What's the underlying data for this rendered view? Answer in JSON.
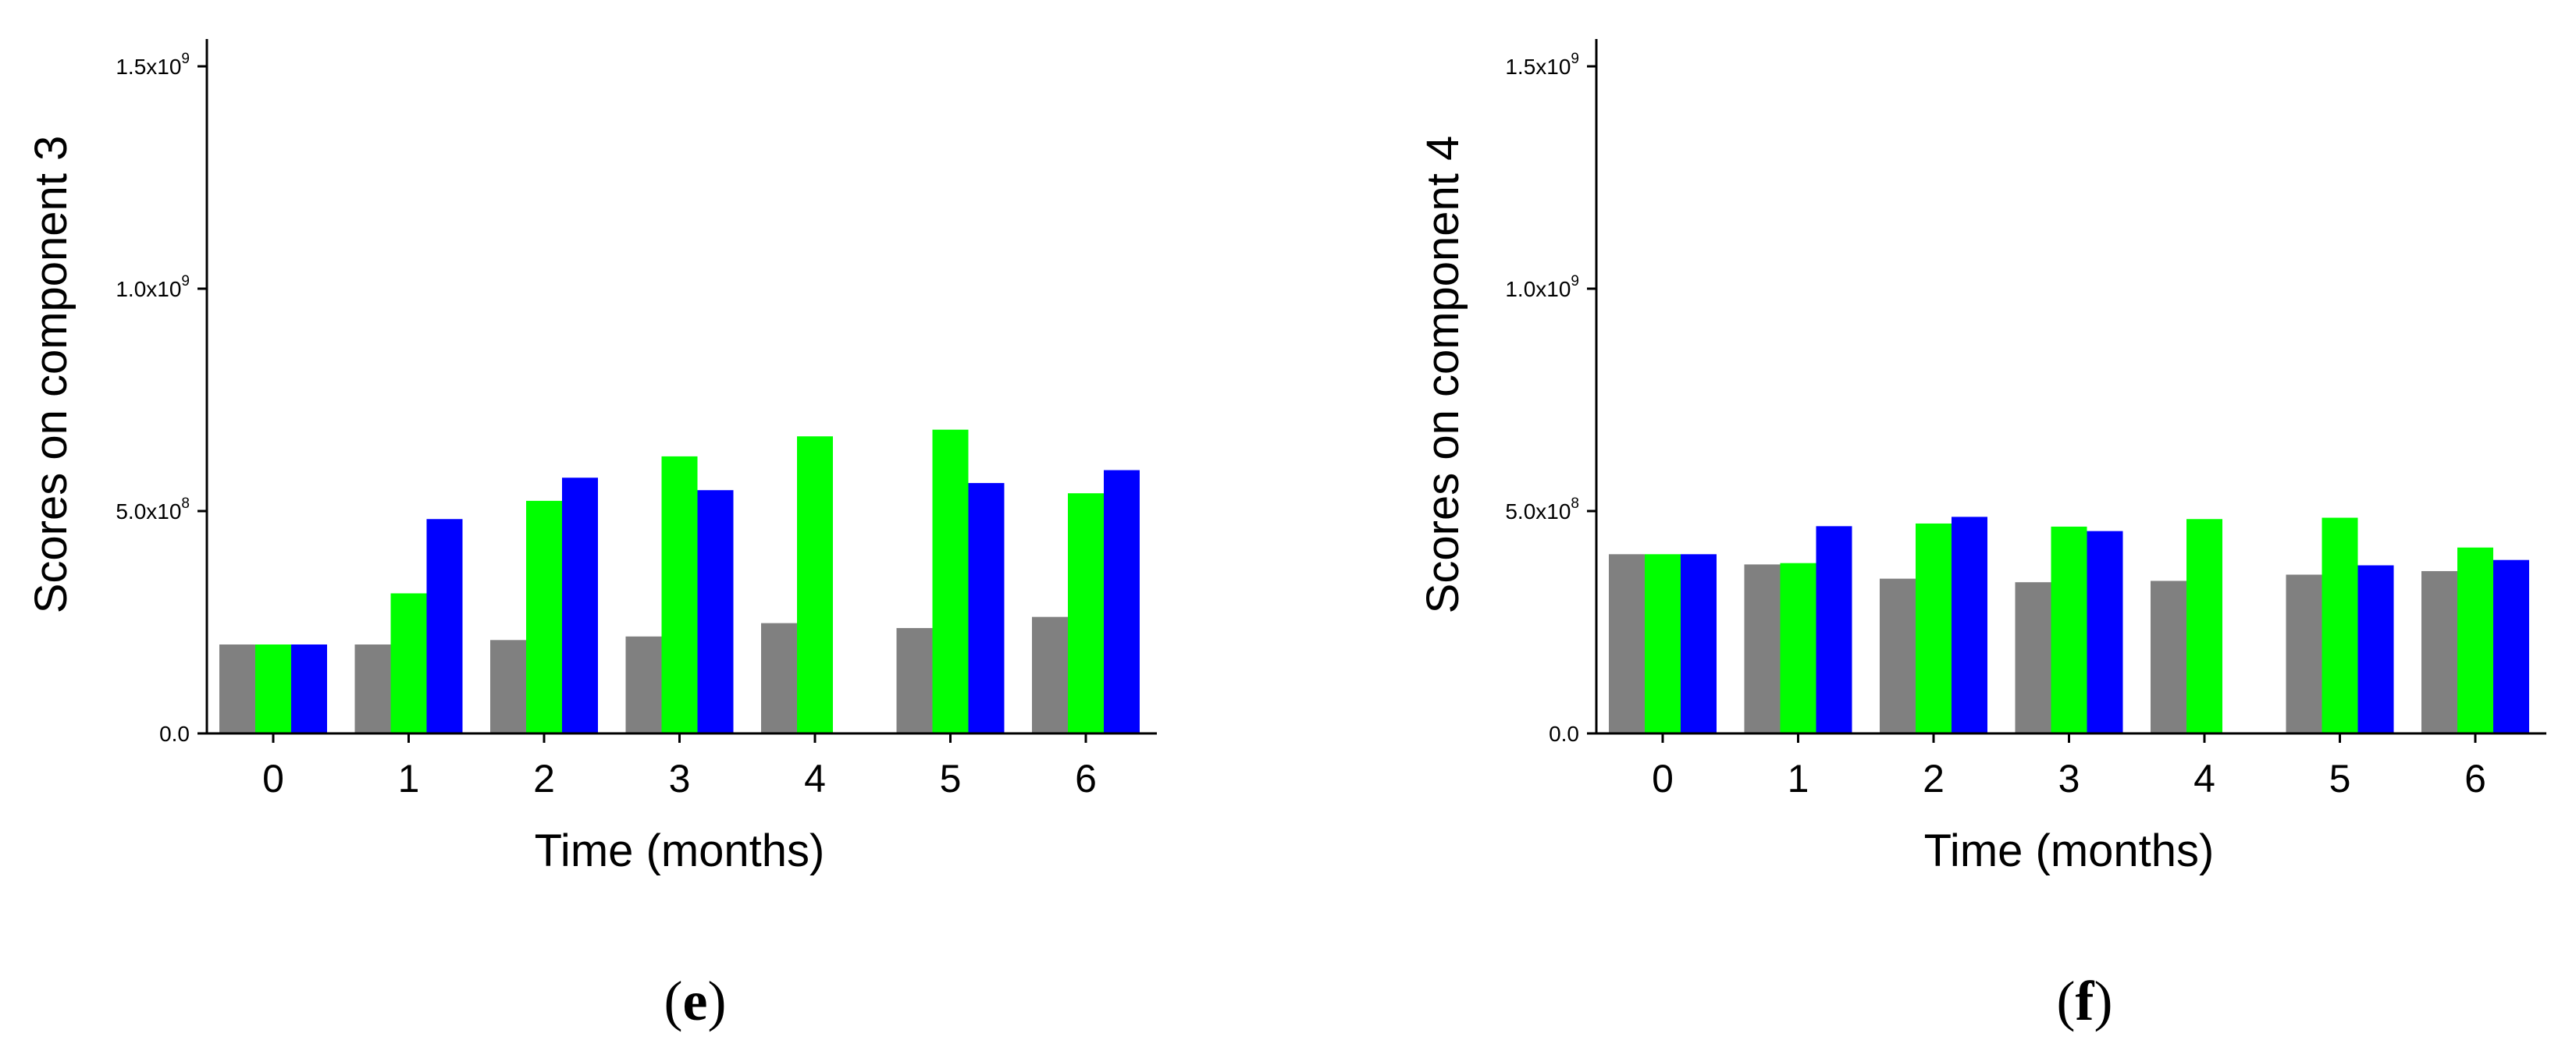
{
  "chart_data": [
    {
      "type": "bar",
      "panel_label": {
        "open": "(",
        "letter": "e",
        "close": ")"
      },
      "xlabel": "Time (months)",
      "ylabel": "Scores on component 3",
      "categories": [
        "0",
        "1",
        "2",
        "3",
        "4",
        "5",
        "6"
      ],
      "ylim": [
        0,
        1600000000
      ],
      "yticks": [
        {
          "value": 0,
          "label": "0.0",
          "exp": ""
        },
        {
          "value": 500000000,
          "label": "5.0x10",
          "exp": "8"
        },
        {
          "value": 1000000000,
          "label": "1.0x10",
          "exp": "9"
        },
        {
          "value": 1500000000,
          "label": "1.5x10",
          "exp": "9"
        }
      ],
      "series": [
        {
          "name": "gray",
          "color": "#808080",
          "values": [
            200000000,
            200000000,
            210000000,
            218000000,
            248000000,
            237000000,
            262000000
          ]
        },
        {
          "name": "green",
          "color": "#00ff00",
          "values": [
            200000000,
            315000000,
            523000000,
            623000000,
            668000000,
            683000000,
            540000000
          ]
        },
        {
          "name": "blue",
          "color": "#0000ff",
          "values": [
            200000000,
            482000000,
            575000000,
            547000000,
            null,
            563000000,
            592000000
          ]
        }
      ],
      "legend": "none",
      "grid": false
    },
    {
      "type": "bar",
      "panel_label": {
        "open": "(",
        "letter": "f",
        "close": ")"
      },
      "xlabel": "Time (months)",
      "ylabel": "Scores on component 4",
      "categories": [
        "0",
        "1",
        "2",
        "3",
        "4",
        "5",
        "6"
      ],
      "ylim": [
        0,
        1600000000
      ],
      "yticks": [
        {
          "value": 0,
          "label": "0.0",
          "exp": ""
        },
        {
          "value": 500000000,
          "label": "5.0x10",
          "exp": "8"
        },
        {
          "value": 1000000000,
          "label": "1.0x10",
          "exp": "9"
        },
        {
          "value": 1500000000,
          "label": "1.5x10",
          "exp": "9"
        }
      ],
      "series": [
        {
          "name": "gray",
          "color": "#808080",
          "values": [
            403000000,
            380000000,
            348000000,
            340000000,
            343000000,
            357000000,
            365000000
          ]
        },
        {
          "name": "green",
          "color": "#00ff00",
          "values": [
            403000000,
            383000000,
            472000000,
            465000000,
            482000000,
            485000000,
            418000000
          ]
        },
        {
          "name": "blue",
          "color": "#0000ff",
          "values": [
            403000000,
            466000000,
            487000000,
            455000000,
            null,
            378000000,
            390000000
          ]
        }
      ],
      "legend": "none",
      "grid": false
    }
  ]
}
